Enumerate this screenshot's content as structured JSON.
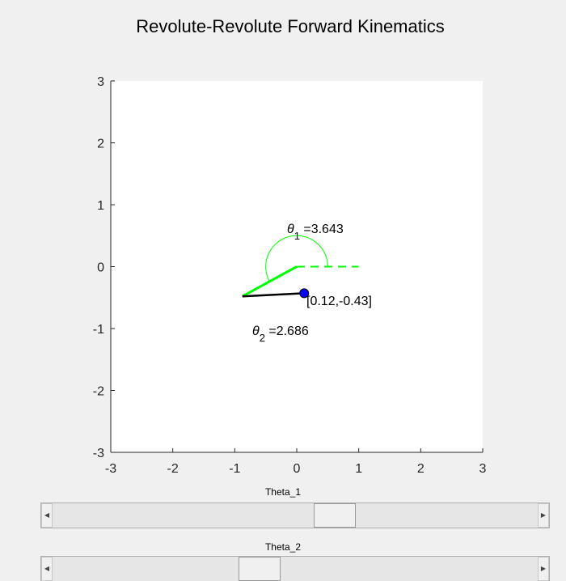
{
  "window": {
    "title": "Revolute-Revolute Forward Kinematics"
  },
  "chart_data": {
    "type": "line",
    "title": "Revolute-Revolute Forward Kinematics",
    "xlim": [
      -3,
      3
    ],
    "ylim": [
      -3,
      3
    ],
    "xticks": [
      "-3",
      "-2",
      "-1",
      "0",
      "1",
      "2",
      "3"
    ],
    "yticks": [
      "3",
      "2",
      "1",
      "0",
      "-1",
      "-2",
      "-3"
    ],
    "grid": false,
    "base": [
      0,
      0
    ],
    "elbow": [
      -0.877,
      -0.48
    ],
    "end_effector": [
      0.12,
      -0.43
    ],
    "theta1": 3.643,
    "theta2": 2.686,
    "reference_line": {
      "from": [
        0,
        0
      ],
      "to": [
        1,
        0
      ]
    },
    "theta1_arc_radius": 0.5,
    "link1_color": "#00ff00",
    "link2_color": "#000000",
    "end_effector_color": "#0000ff",
    "annotations": {
      "theta1_symbol": "θ",
      "theta1_sub": "1",
      "theta1_value": " =3.643",
      "theta2_symbol": "θ",
      "theta2_sub": "2",
      "theta2_value": " =2.686",
      "end_effector_label": "[0.12,-0.43]"
    }
  },
  "sliders": [
    {
      "label": "Theta_1",
      "value_fraction": 0.59
    },
    {
      "label": "Theta_2",
      "value_fraction": 0.42
    }
  ],
  "icons": {
    "left_arrow": "◀",
    "right_arrow": "▶"
  }
}
